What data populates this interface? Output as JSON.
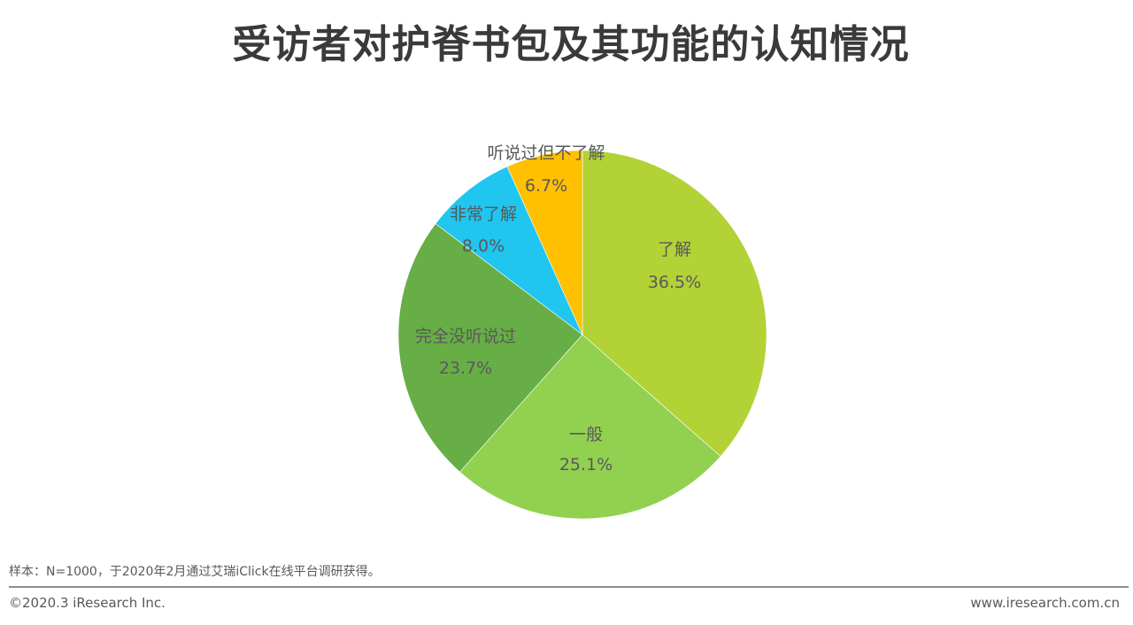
{
  "title": "受访者对护脊书包及其功能的认知情况",
  "chart_data": {
    "type": "pie",
    "title": "受访者对护脊书包及其功能的认知情况",
    "start_angle": "12 o'clock, clockwise",
    "slices": [
      {
        "label": "了解",
        "value": 36.5,
        "display": "36.5%",
        "color": "#b2d235"
      },
      {
        "label": "一般",
        "value": 25.1,
        "display": "25.1%",
        "color": "#92d050"
      },
      {
        "label": "完全没听说过",
        "value": 23.7,
        "display": "23.7%",
        "color": "#66ae45"
      },
      {
        "label": "非常了解",
        "value": 8.0,
        "display": "8.0%",
        "color": "#20c5f0"
      },
      {
        "label": "听说过但不了解",
        "value": 6.7,
        "display": "6.7%",
        "color": "#ffc000"
      }
    ],
    "legend": "none (labels on slices)"
  },
  "footer": {
    "note": "样本：N=1000，于2020年2月通过艾瑞iClick在线平台调研获得。",
    "copyright": "©2020.3 iResearch Inc.",
    "website": "www.iresearch.com.cn"
  }
}
